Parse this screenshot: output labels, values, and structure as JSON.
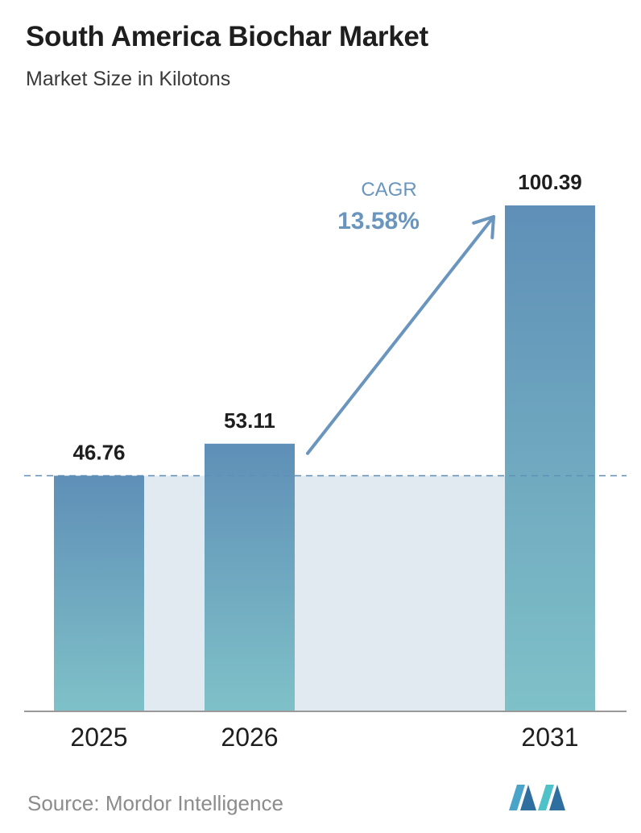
{
  "header": {
    "title": "South America Biochar Market",
    "subtitle": "Market Size in Kilotons"
  },
  "chart_data": {
    "type": "bar",
    "title": "South America Biochar Market",
    "subtitle": "Market Size in Kilotons",
    "categories": [
      "2025",
      "2026",
      "2031"
    ],
    "values": [
      46.76,
      53.11,
      100.39
    ],
    "value_labels": [
      "46.76",
      "53.11",
      "100.39"
    ],
    "ylim": [
      0,
      100.39
    ],
    "grid": false,
    "cagr": {
      "label": "CAGR",
      "value": "13.58%"
    },
    "reference_line": 46.76,
    "colors": {
      "bar_top": "#5f8fb7",
      "bar_bottom": "#7fc1c8",
      "shade": "#e1e9f1",
      "dashed_line": "#5f8fb7",
      "arrow": "#6a95bd",
      "cagr_text": "#6a95bd",
      "axis": "#999999"
    }
  },
  "footer": {
    "source": "Source: Mordor Intelligence",
    "logo_icon": "mordor-intelligence-logo-icon"
  }
}
